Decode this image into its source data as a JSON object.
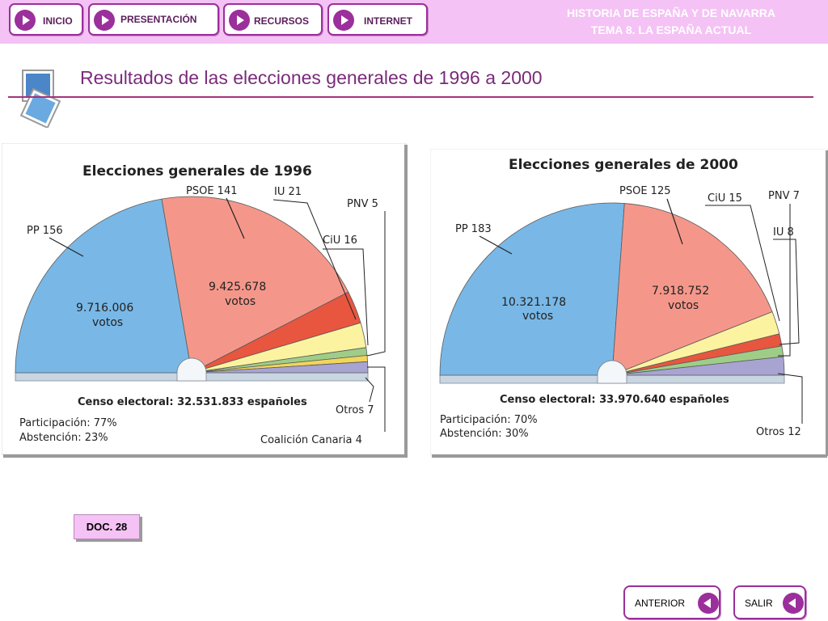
{
  "nav": {
    "inicio": "INICIO",
    "presentacion": "PRESENTACIÓN",
    "recursos": "RECURSOS",
    "internet": "INTERNET"
  },
  "header": {
    "line1": "HISTORIA DE ESPAÑA Y DE NAVARRA",
    "line2": "TEMA 8. LA ESPAÑA ACTUAL"
  },
  "page": {
    "title": "Resultados de las elecciones generales de 1996 a 2000",
    "doc_label": "DOC. 28"
  },
  "footer": {
    "anterior": "ANTERIOR",
    "salir": "SALIR"
  },
  "colors": {
    "PP": "#79b8e6",
    "PSOE": "#f4978a",
    "IU": "#e8563f",
    "CiU": "#fbf3a0",
    "PNV": "#9fcd88",
    "CC": "#f2d55a",
    "Otros": "#a8a4d2"
  },
  "chart_data": [
    {
      "type": "pie",
      "title": "Elecciones generales de 1996",
      "slices": [
        {
          "party": "PP",
          "seats": 156,
          "label": "PP 156",
          "votes": "9.716.006",
          "votes_unit": "votos"
        },
        {
          "party": "PSOE",
          "seats": 141,
          "label": "PSOE 141",
          "votes": "9.425.678",
          "votes_unit": "votos"
        },
        {
          "party": "IU",
          "seats": 21,
          "label": "IU 21"
        },
        {
          "party": "CiU",
          "seats": 16,
          "label": "CiU 16"
        },
        {
          "party": "PNV",
          "seats": 5,
          "label": "PNV 5"
        },
        {
          "party": "CC",
          "seats": 4,
          "label": "Coalición Canaria 4"
        },
        {
          "party": "Otros",
          "seats": 7,
          "label": "Otros 7"
        }
      ],
      "censo": "Censo electoral: 32.531.833 españoles",
      "participacion": "Participación: 77%",
      "abstencion": "Abstención: 23%"
    },
    {
      "type": "pie",
      "title": "Elecciones generales de 2000",
      "slices": [
        {
          "party": "PP",
          "seats": 183,
          "label": "PP 183",
          "votes": "10.321.178",
          "votes_unit": "votos"
        },
        {
          "party": "PSOE",
          "seats": 125,
          "label": "PSOE 125",
          "votes": "7.918.752",
          "votes_unit": "votos"
        },
        {
          "party": "CiU",
          "seats": 15,
          "label": "CiU 15"
        },
        {
          "party": "IU",
          "seats": 8,
          "label": "IU 8"
        },
        {
          "party": "PNV",
          "seats": 7,
          "label": "PNV 7"
        },
        {
          "party": "Otros",
          "seats": 12,
          "label": "Otros 12"
        }
      ],
      "censo": "Censo electoral: 33.970.640 españoles",
      "participacion": "Participación: 70%",
      "abstencion": "Abstención: 30%"
    }
  ]
}
